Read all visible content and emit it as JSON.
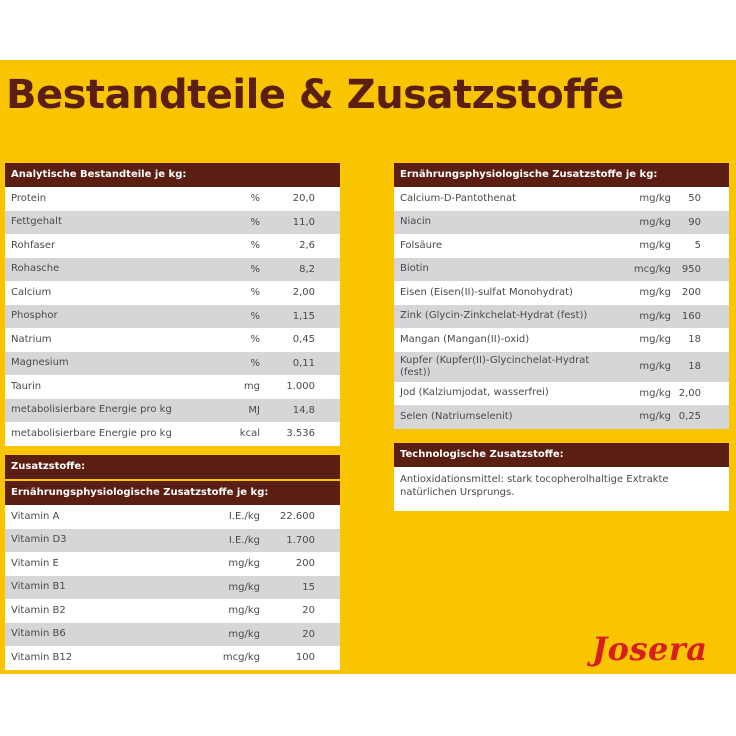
{
  "title": "Bestandteile & Zusatzstoffe",
  "colors": {
    "background": "#f9c400",
    "header": "#5b1e12",
    "title": "#5b1e12",
    "logo": "#d81e22",
    "row_alt": "#d6d6d6"
  },
  "analytical": {
    "header": "Analytische Bestandteile je kg:",
    "rows": [
      {
        "name": "Protein",
        "unit": "%",
        "value": "20,0"
      },
      {
        "name": "Fettgehalt",
        "unit": "%",
        "value": "11,0"
      },
      {
        "name": "Rohfaser",
        "unit": "%",
        "value": "2,6"
      },
      {
        "name": "Rohasche",
        "unit": "%",
        "value": "8,2"
      },
      {
        "name": "Calcium",
        "unit": "%",
        "value": "2,00"
      },
      {
        "name": "Phosphor",
        "unit": "%",
        "value": "1,15"
      },
      {
        "name": "Natrium",
        "unit": "%",
        "value": "0,45"
      },
      {
        "name": "Magnesium",
        "unit": "%",
        "value": "0,11"
      },
      {
        "name": "Taurin",
        "unit": "mg",
        "value": "1.000"
      },
      {
        "name": "metabolisierbare Energie pro kg",
        "unit": "MJ",
        "value": "14,8"
      },
      {
        "name": "metabolisierbare Energie pro kg",
        "unit": "kcal",
        "value": "3.536"
      }
    ]
  },
  "additives": {
    "header": "Zusatzstoffe:",
    "subheader": "Ernährungsphysiologische Zusatzstoffe je kg:",
    "rows": [
      {
        "name": "Vitamin A",
        "unit": "I.E./kg",
        "value": "22.600"
      },
      {
        "name": "Vitamin D3",
        "unit": "I.E./kg",
        "value": "1.700"
      },
      {
        "name": "Vitamin E",
        "unit": "mg/kg",
        "value": "200"
      },
      {
        "name": "Vitamin B1",
        "unit": "mg/kg",
        "value": "15"
      },
      {
        "name": "Vitamin B2",
        "unit": "mg/kg",
        "value": "20"
      },
      {
        "name": "Vitamin B6",
        "unit": "mg/kg",
        "value": "20"
      },
      {
        "name": "Vitamin B12",
        "unit": "mcg/kg",
        "value": "100"
      }
    ]
  },
  "nutritional": {
    "header": "Ernährungsphysiologische Zusatzstoffe je kg:",
    "rows": [
      {
        "name": "Calcium-D-Pantothenat",
        "unit": "mg/kg",
        "value": "50"
      },
      {
        "name": "Niacin",
        "unit": "mg/kg",
        "value": "90"
      },
      {
        "name": "Folsäure",
        "unit": "mg/kg",
        "value": "5"
      },
      {
        "name": "Biotin",
        "unit": "mcg/kg",
        "value": "950"
      },
      {
        "name": "Eisen (Eisen(II)-sulfat Monohydrat)",
        "unit": "mg/kg",
        "value": "200"
      },
      {
        "name": "Zink (Glycin-Zinkchelat-Hydrat (fest))",
        "unit": "mg/kg",
        "value": "160"
      },
      {
        "name": "Mangan (Mangan(II)-oxid)",
        "unit": "mg/kg",
        "value": "18"
      },
      {
        "name": "Kupfer (Kupfer(II)-Glycinchelat-Hydrat (fest))",
        "unit": "mg/kg",
        "value": "18"
      },
      {
        "name": "Jod (Kalziumjodat, wasserfrei)",
        "unit": "mg/kg",
        "value": "2,00"
      },
      {
        "name": "Selen (Natriumselenit)",
        "unit": "mg/kg",
        "value": "0,25"
      }
    ]
  },
  "technological": {
    "header": "Technologische Zusatzstoffe:",
    "text": "Antioxidationsmittel: stark tocopherolhaltige Extrakte natürlichen Ursprungs."
  },
  "logo": "Josera"
}
